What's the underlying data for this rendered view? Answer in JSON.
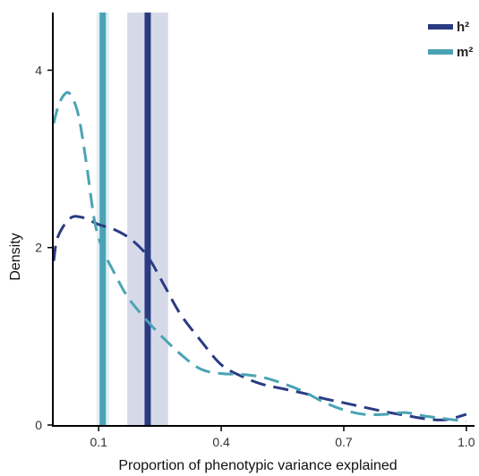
{
  "chart_data": {
    "type": "line",
    "title": "",
    "xlabel": "Proportion of phenotypic variance explained",
    "ylabel": "Density",
    "xlim": [
      -0.01,
      1.02
    ],
    "ylim": [
      0,
      4.65
    ],
    "x_ticks": [
      0.1,
      0.4,
      0.7,
      1.0
    ],
    "x_tick_labels": [
      "0.1",
      "0.4",
      "0.7",
      "1.0"
    ],
    "y_ticks": [
      0,
      2,
      4
    ],
    "y_tick_labels": [
      "0",
      "2",
      "4"
    ],
    "grid": false,
    "legend_position": "top-right",
    "series": [
      {
        "name": "h²",
        "color": "#2a3b83",
        "style": "dashed",
        "estimate": 0.22,
        "interval": [
          0.17,
          0.27
        ],
        "interval_color": "#d6dae8",
        "x": [
          -0.01,
          0.0,
          0.03,
          0.06,
          0.1,
          0.14,
          0.18,
          0.22,
          0.26,
          0.3,
          0.35,
          0.4,
          0.45,
          0.5,
          0.55,
          0.6,
          0.65,
          0.7,
          0.75,
          0.8,
          0.85,
          0.9,
          0.95,
          1.0
        ],
        "y": [
          1.85,
          2.12,
          2.33,
          2.34,
          2.26,
          2.2,
          2.09,
          1.9,
          1.58,
          1.25,
          0.95,
          0.68,
          0.55,
          0.46,
          0.41,
          0.36,
          0.3,
          0.25,
          0.2,
          0.15,
          0.11,
          0.07,
          0.06,
          0.12
        ]
      },
      {
        "name": "m²",
        "color": "#4aa3b5",
        "style": "dashed",
        "estimate": 0.11,
        "interval": [
          0.095,
          0.125
        ],
        "interval_color": "#e0eff3",
        "x": [
          -0.01,
          0.0,
          0.015,
          0.03,
          0.05,
          0.07,
          0.09,
          0.11,
          0.14,
          0.17,
          0.21,
          0.25,
          0.3,
          0.35,
          0.4,
          0.45,
          0.5,
          0.55,
          0.6,
          0.65,
          0.7,
          0.75,
          0.8,
          0.85,
          0.9,
          0.95,
          1.0
        ],
        "y": [
          3.4,
          3.58,
          3.72,
          3.73,
          3.5,
          2.95,
          2.3,
          1.98,
          1.7,
          1.45,
          1.22,
          1.02,
          0.8,
          0.63,
          0.58,
          0.57,
          0.54,
          0.47,
          0.38,
          0.26,
          0.17,
          0.12,
          0.12,
          0.14,
          0.1,
          0.07,
          0.04
        ]
      }
    ]
  }
}
